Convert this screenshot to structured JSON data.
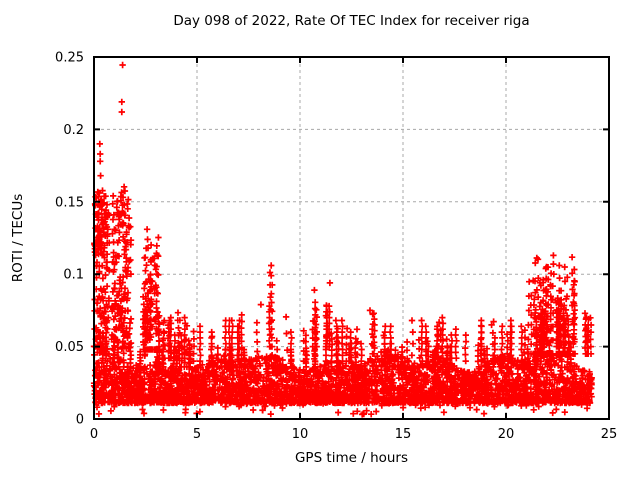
{
  "chart_data": {
    "type": "scatter",
    "title": "Day 098 of 2022, Rate Of TEC Index for receiver riga",
    "xlabel": "GPS time / hours",
    "ylabel": "ROTI / TECUs",
    "xlim": [
      0,
      25
    ],
    "ylim": [
      0,
      0.25
    ],
    "xticks": [
      0,
      5,
      10,
      15,
      20,
      25
    ],
    "xtick_labels": [
      "0",
      "5",
      "10",
      "15",
      "20",
      "25"
    ],
    "yticks": [
      0,
      0.05,
      0.1,
      0.15,
      0.2,
      0.25
    ],
    "ytick_labels": [
      "0",
      "0.05",
      "0.1",
      "0.15",
      "0.2",
      "0.25"
    ],
    "grid": true,
    "legend": "none",
    "marker": "plus",
    "x_data_min": 0,
    "x_data_max": 24.17,
    "seed": 1337,
    "baseline_band": {
      "x_min": 0.0,
      "x_max": 24.17,
      "count": 3600,
      "y_floor": 0.011,
      "top_base": 0.04,
      "top_amp1": 0.004,
      "top_amp2": 0.003
    },
    "low_outliers": {
      "count": 65,
      "x_min": 0.0,
      "x_max": 24.1,
      "y_min": 0.003,
      "y_max": 0.011
    },
    "minor_columns": {
      "count": 60,
      "x_min": 0.15,
      "x_max": 24.05,
      "base": 0.036,
      "top_min": 0.046,
      "top_extra": 0.028
    },
    "clusters": [
      {
        "x0": 0.0,
        "x1": 0.75,
        "y0": 0.048,
        "y1": 0.158,
        "count": 160,
        "style": "blob"
      },
      {
        "x0": 0.0,
        "x1": 0.5,
        "y0": 0.115,
        "y1": 0.152,
        "count": 40,
        "style": "blob"
      },
      {
        "x0": 0.85,
        "x1": 1.8,
        "y0": 0.048,
        "y1": 0.155,
        "count": 160,
        "style": "blob"
      },
      {
        "x0": 1.25,
        "x1": 1.5,
        "y0": 0.14,
        "y1": 0.162,
        "count": 14,
        "style": "blob"
      },
      {
        "x0": 2.4,
        "x1": 3.25,
        "y0": 0.048,
        "y1": 0.126,
        "count": 120,
        "style": "columns"
      },
      {
        "x0": 3.1,
        "x1": 4.6,
        "y0": 0.042,
        "y1": 0.075,
        "count": 80,
        "style": "columns"
      },
      {
        "x0": 4.6,
        "x1": 8.3,
        "y0": 0.04,
        "y1": 0.072,
        "count": 70,
        "style": "columns"
      },
      {
        "x0": 8.5,
        "x1": 8.7,
        "y0": 0.05,
        "y1": 0.106,
        "count": 24,
        "style": "columns"
      },
      {
        "x0": 9.0,
        "x1": 13.0,
        "y0": 0.04,
        "y1": 0.065,
        "count": 60,
        "style": "columns"
      },
      {
        "x0": 10.55,
        "x1": 10.85,
        "y0": 0.05,
        "y1": 0.09,
        "count": 20,
        "style": "columns"
      },
      {
        "x0": 11.25,
        "x1": 11.65,
        "y0": 0.05,
        "y1": 0.095,
        "count": 28,
        "style": "columns"
      },
      {
        "x0": 13.25,
        "x1": 13.6,
        "y0": 0.045,
        "y1": 0.076,
        "count": 18,
        "style": "columns"
      },
      {
        "x0": 14.0,
        "x1": 16.2,
        "y0": 0.04,
        "y1": 0.06,
        "count": 40,
        "style": "columns"
      },
      {
        "x0": 16.3,
        "x1": 17.6,
        "y0": 0.042,
        "y1": 0.068,
        "count": 36,
        "style": "columns"
      },
      {
        "x0": 18.0,
        "x1": 20.8,
        "y0": 0.04,
        "y1": 0.062,
        "count": 50,
        "style": "columns"
      },
      {
        "x0": 21.0,
        "x1": 23.35,
        "y0": 0.045,
        "y1": 0.112,
        "count": 300,
        "style": "columns"
      },
      {
        "x0": 23.8,
        "x1": 24.15,
        "y0": 0.045,
        "y1": 0.075,
        "count": 30,
        "style": "columns"
      }
    ],
    "notable_points": [
      [
        1.39,
        0.2445
      ],
      [
        1.35,
        0.219
      ],
      [
        1.35,
        0.212
      ],
      [
        0.28,
        0.19
      ],
      [
        0.3,
        0.183
      ],
      [
        0.3,
        0.178
      ],
      [
        0.32,
        0.168
      ],
      [
        2.58,
        0.131
      ],
      [
        2.6,
        0.124
      ],
      [
        2.62,
        0.118
      ],
      [
        8.6,
        0.106
      ],
      [
        8.6,
        0.099
      ],
      [
        22.3,
        0.113
      ],
      [
        22.3,
        0.107
      ],
      [
        22.32,
        0.1
      ],
      [
        11.45,
        0.094
      ],
      [
        22.85,
        0.105
      ],
      [
        10.7,
        0.089
      ],
      [
        8.1,
        0.079
      ],
      [
        13.4,
        0.075
      ],
      [
        19.3,
        0.065
      ]
    ],
    "colors": {
      "marker": "#ff0000",
      "grid": "#a8a8a8",
      "border": "#000000",
      "background": "#ffffff",
      "text": "#000000"
    }
  }
}
